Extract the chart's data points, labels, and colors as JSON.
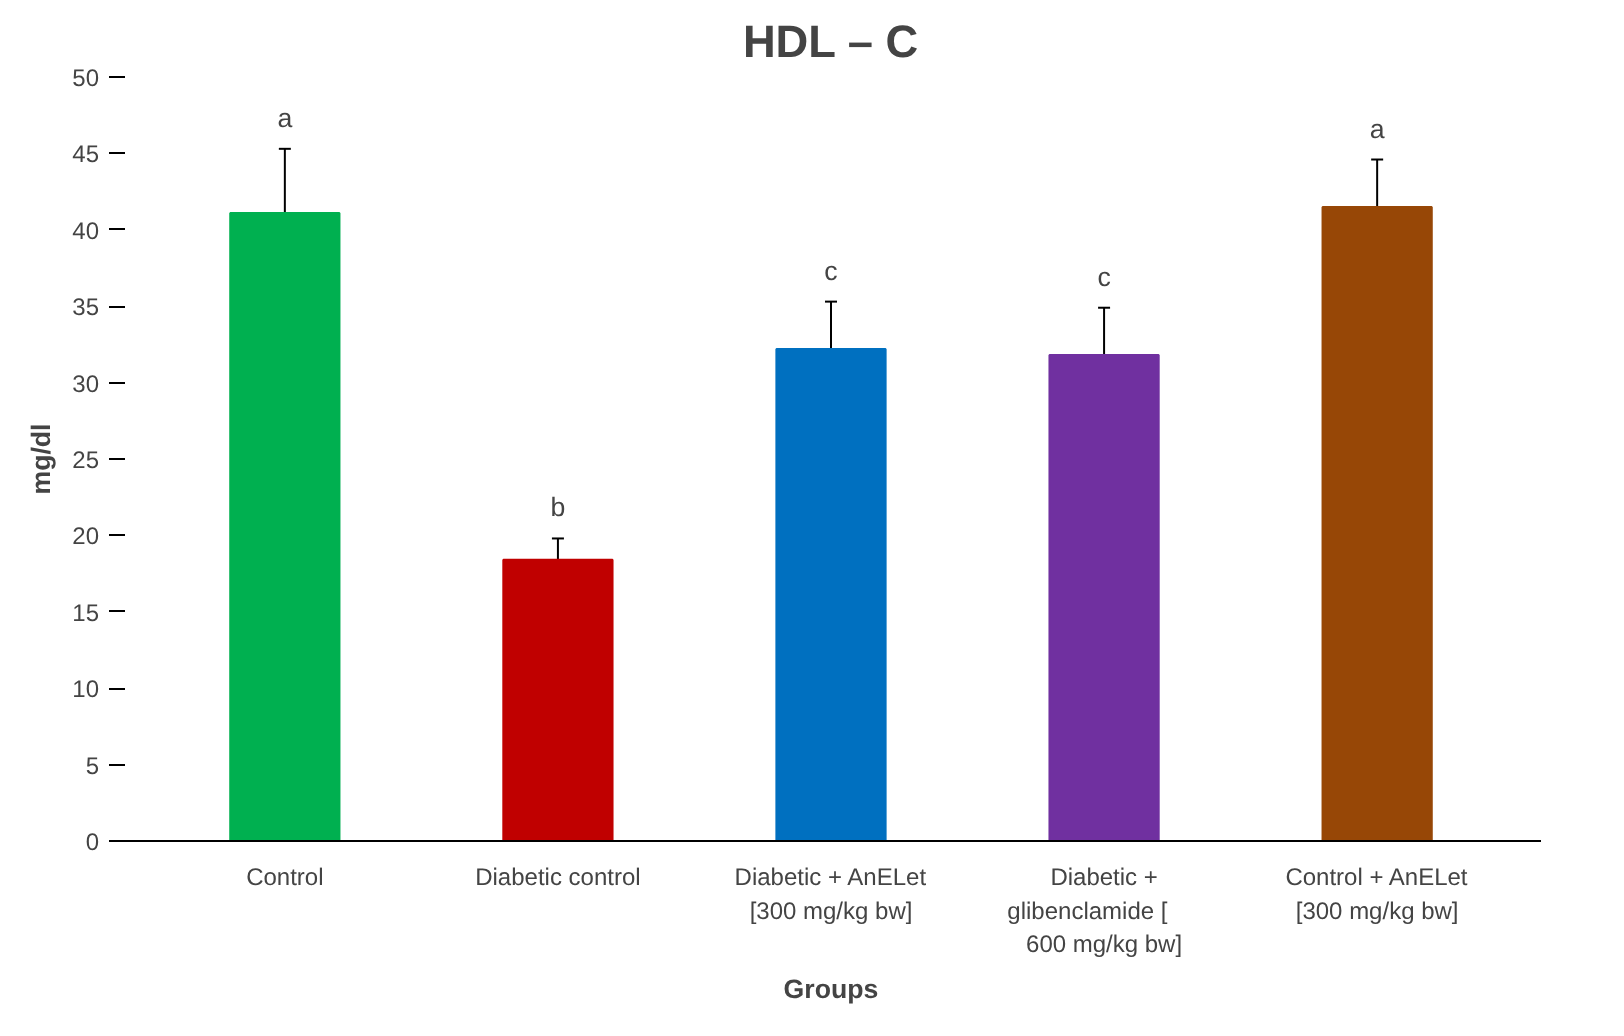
{
  "chart_data": {
    "type": "bar",
    "title": "HDL – C",
    "xlabel": "Groups",
    "ylabel": "mg/dl",
    "categories": [
      "Control",
      "Diabetic control",
      "Diabetic + AnELet\n[300 mg/kg bw]",
      "Diabetic +\nglibenclamide      [\n600 mg/kg bw]",
      "Control + AnELet\n[300 mg/kg bw]"
    ],
    "values": [
      41.1,
      18.4,
      32.2,
      31.8,
      41.5
    ],
    "errors": [
      4.2,
      1.4,
      3.1,
      3.1,
      3.1
    ],
    "colors": [
      "#00b050",
      "#c00000",
      "#0070c0",
      "#7030a0",
      "#974706"
    ],
    "ylim": [
      0,
      50
    ],
    "yticks": [
      0,
      5,
      10,
      15,
      20,
      25,
      30,
      35,
      40,
      45,
      50
    ],
    "grid": false,
    "annotations": [
      "a",
      "b",
      "c",
      "c",
      "a"
    ]
  }
}
